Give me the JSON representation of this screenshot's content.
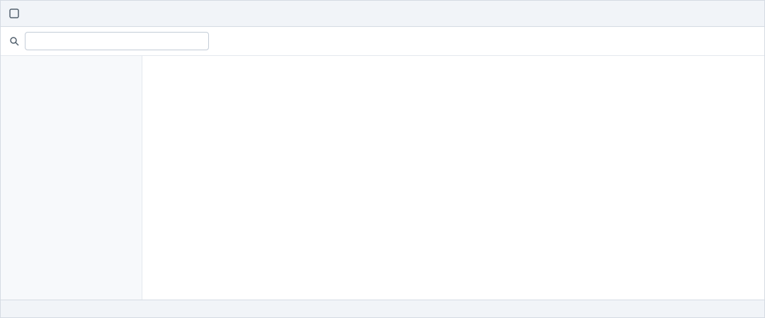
{
  "window": {
    "title": ""
  },
  "toolbar": {
    "search_placeholder": "",
    "search_value": ""
  },
  "sidebar": {
    "items": []
  },
  "main": {
    "title": "",
    "body": ""
  },
  "status": {
    "text": ""
  }
}
